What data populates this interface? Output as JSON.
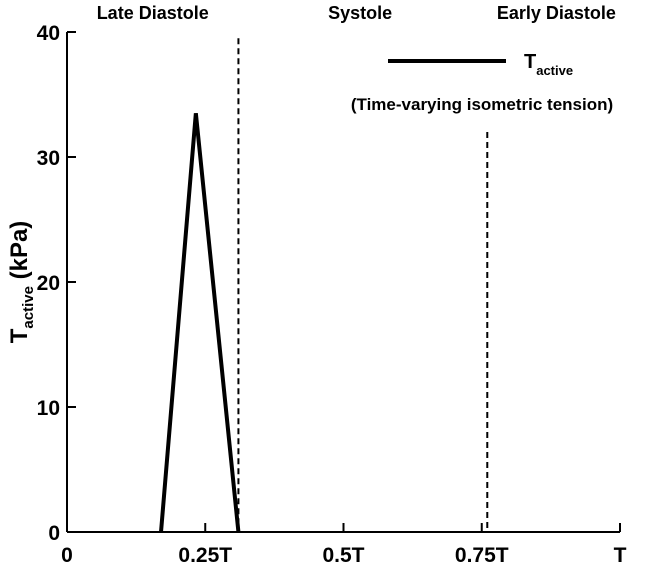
{
  "chart_data": {
    "type": "line",
    "ylabel": {
      "main": "T",
      "sub": "active",
      "unit": " (kPa)"
    },
    "xlim": [
      0,
      1
    ],
    "ylim": [
      0,
      40
    ],
    "x_ticks": [
      {
        "value": 0,
        "label": "0"
      },
      {
        "value": 0.25,
        "label": "0.25T"
      },
      {
        "value": 0.5,
        "label": "0.5T"
      },
      {
        "value": 0.75,
        "label": "0.75T"
      },
      {
        "value": 1,
        "label": "T"
      }
    ],
    "y_ticks": [
      {
        "value": 0,
        "label": "0"
      },
      {
        "value": 10,
        "label": "10"
      },
      {
        "value": 20,
        "label": "20"
      },
      {
        "value": 30,
        "label": "30"
      },
      {
        "value": 40,
        "label": "40"
      }
    ],
    "series": [
      {
        "name": "T active",
        "color": "#000000",
        "x": [
          0.17,
          0.233,
          0.31
        ],
        "y": [
          0,
          33.5,
          0
        ]
      }
    ],
    "vlines": [
      {
        "x": 0.31,
        "ymin": 0,
        "ymax": 39.5,
        "style": "dashed"
      },
      {
        "x": 0.76,
        "ymin": 0,
        "ymax": 32.0,
        "style": "dashed"
      }
    ],
    "phases": [
      {
        "label": "Late Diastole",
        "x": 0.155
      },
      {
        "label": "Systole",
        "x": 0.53
      },
      {
        "label": "Early Diastole",
        "x": 0.885
      }
    ],
    "legend": {
      "main": "T",
      "sub": "active",
      "placement": "top-right"
    },
    "annotation": "(Time-varying isometric tension)",
    "grid": false
  }
}
